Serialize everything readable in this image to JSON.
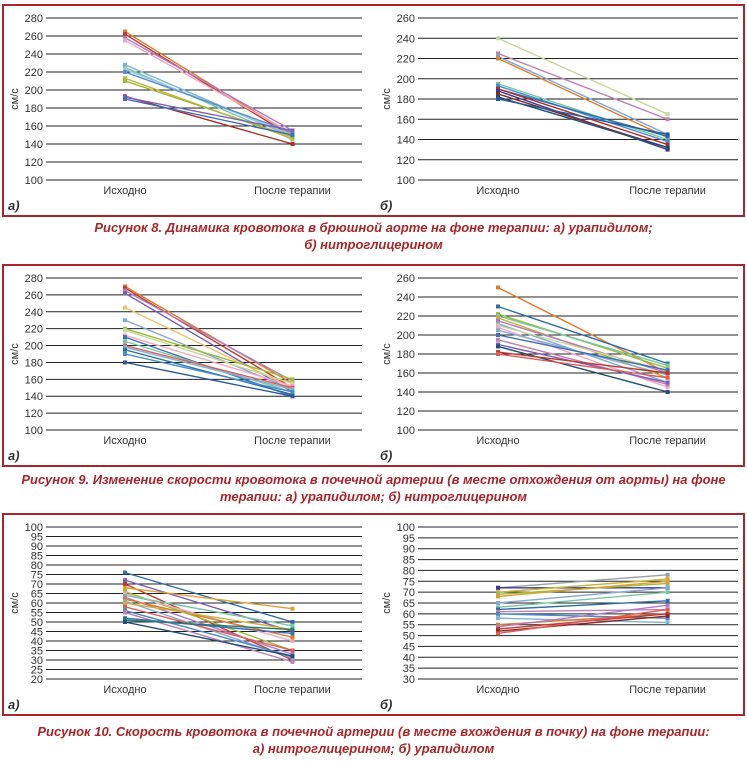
{
  "figures": [
    {
      "caption": [
        "Рисунок 8. Динамика кровотока в брюшной аорте на фоне терапии: а) урапидилом;",
        "б) нитроглицерином"
      ],
      "panels": [
        {
          "label": "а)",
          "chart_data": {
            "type": "line",
            "ylabel": "см/с",
            "ylim": [
              100,
              280
            ],
            "yticks": [
              100,
              120,
              140,
              160,
              180,
              200,
              220,
              240,
              260,
              280
            ],
            "categories": [
              "Исходно",
              "После терапии"
            ],
            "grid": true,
            "series": [
              {
                "values": [
                  265,
                  150
                ],
                "color": "#e07b2a"
              },
              {
                "values": [
                  262,
                  148
                ],
                "color": "#c0392b"
              },
              {
                "values": [
                  258,
                  155
                ],
                "color": "#b07cc6"
              },
              {
                "values": [
                  255,
                  152
                ],
                "color": "#f2a7c3"
              },
              {
                "values": [
                  228,
                  148
                ],
                "color": "#7fb3d5"
              },
              {
                "values": [
                  225,
                  145
                ],
                "color": "#76c7a3"
              },
              {
                "values": [
                  223,
                  150
                ],
                "color": "#9cc8e8"
              },
              {
                "values": [
                  220,
                  153
                ],
                "color": "#5b8fd1"
              },
              {
                "values": [
                  213,
                  146
                ],
                "color": "#c9b23b"
              },
              {
                "values": [
                  210,
                  148
                ],
                "color": "#9dbb3a"
              },
              {
                "values": [
                  193,
                  140
                ],
                "color": "#b02a2a"
              },
              {
                "values": [
                  192,
                  155
                ],
                "color": "#7b5fb8"
              },
              {
                "values": [
                  190,
                  150
                ],
                "color": "#3b6fb6"
              }
            ]
          }
        },
        {
          "label": "б)",
          "chart_data": {
            "type": "line",
            "ylabel": "см/с",
            "ylim": [
              100,
              260
            ],
            "yticks": [
              100,
              120,
              140,
              160,
              180,
              200,
              220,
              240,
              260
            ],
            "categories": [
              "Исходно",
              "После терапии"
            ],
            "grid": true,
            "series": [
              {
                "values": [
                  240,
                  165
                ],
                "color": "#c6d89a"
              },
              {
                "values": [
                  225,
                  160
                ],
                "color": "#c07fb5"
              },
              {
                "values": [
                  222,
                  145
                ],
                "color": "#7fa8d6"
              },
              {
                "values": [
                  220,
                  142
                ],
                "color": "#e07b2a"
              },
              {
                "values": [
                  195,
                  140
                ],
                "color": "#76c7a3"
              },
              {
                "values": [
                  193,
                  138
                ],
                "color": "#4a8bc9"
              },
              {
                "values": [
                  190,
                  143
                ],
                "color": "#2e6fa8"
              },
              {
                "values": [
                  190,
                  135
                ],
                "color": "#b02a2a"
              },
              {
                "values": [
                  188,
                  130
                ],
                "color": "#3a3a8c"
              },
              {
                "values": [
                  185,
                  132
                ],
                "color": "#8a2a2a"
              },
              {
                "values": [
                  182,
                  132
                ],
                "color": "#1f4f7a"
              },
              {
                "values": [
                  180,
                  145
                ],
                "color": "#2a5a9a"
              }
            ]
          }
        }
      ]
    },
    {
      "caption": [
        "Рисунок 9. Изменение скорости кровотока в почечной артерии (в месте отхождения от аорты) на фоне",
        "терапии: а) урапидилом; б) нитроглицерином"
      ],
      "panels": [
        {
          "label": "а)",
          "chart_data": {
            "type": "line",
            "ylabel": "см/с",
            "ylim": [
              100,
              280
            ],
            "yticks": [
              100,
              120,
              140,
              160,
              180,
              200,
              220,
              240,
              260,
              280
            ],
            "categories": [
              "Исходно",
              "После терапии"
            ],
            "grid": true,
            "series": [
              {
                "values": [
                  270,
                  155
                ],
                "color": "#e07b2a"
              },
              {
                "values": [
                  268,
                  150
                ],
                "color": "#c0392b"
              },
              {
                "values": [
                  265,
                  158
                ],
                "color": "#b07cc6"
              },
              {
                "values": [
                  262,
                  145
                ],
                "color": "#7b5fb8"
              },
              {
                "values": [
                  245,
                  150
                ],
                "color": "#f0c26b"
              },
              {
                "values": [
                  230,
                  148
                ],
                "color": "#8aa8d6"
              },
              {
                "values": [
                  220,
                  160
                ],
                "color": "#9dbb3a"
              },
              {
                "values": [
                  218,
                  155
                ],
                "color": "#c6d89a"
              },
              {
                "values": [
                  212,
                  152
                ],
                "color": "#f2a7c3"
              },
              {
                "values": [
                  210,
                  140
                ],
                "color": "#3b6fb6"
              },
              {
                "values": [
                  205,
                  145
                ],
                "color": "#76c7a3"
              },
              {
                "values": [
                  200,
                  150
                ],
                "color": "#e05a5a"
              },
              {
                "values": [
                  198,
                  148
                ],
                "color": "#7fb3d5"
              },
              {
                "values": [
                  195,
                  142
                ],
                "color": "#2e6fa8"
              },
              {
                "values": [
                  190,
                  145
                ],
                "color": "#4a8bc9"
              },
              {
                "values": [
                  180,
                  140
                ],
                "color": "#2a5a9a"
              }
            ]
          }
        },
        {
          "label": "б)",
          "chart_data": {
            "type": "line",
            "ylabel": "см/с",
            "ylim": [
              100,
              260
            ],
            "yticks": [
              100,
              120,
              140,
              160,
              180,
              200,
              220,
              240,
              260
            ],
            "categories": [
              "Исходно",
              "После терапии"
            ],
            "grid": true,
            "series": [
              {
                "values": [
                  250,
                  160
                ],
                "color": "#e07b2a"
              },
              {
                "values": [
                  230,
                  170
                ],
                "color": "#2e6fa8"
              },
              {
                "values": [
                  222,
                  165
                ],
                "color": "#9dbb3a"
              },
              {
                "values": [
                  220,
                  168
                ],
                "color": "#76c7a3"
              },
              {
                "values": [
                  218,
                  155
                ],
                "color": "#c9b23b"
              },
              {
                "values": [
                  215,
                  160
                ],
                "color": "#b07cc6"
              },
              {
                "values": [
                  212,
                  150
                ],
                "color": "#7fa8d6"
              },
              {
                "values": [
                  210,
                  162
                ],
                "color": "#c6d89a"
              },
              {
                "values": [
                  208,
                  145
                ],
                "color": "#f2a7c3"
              },
              {
                "values": [
                  205,
                  158
                ],
                "color": "#8aa8d6"
              },
              {
                "values": [
                  200,
                  163
                ],
                "color": "#3b6fb6"
              },
              {
                "values": [
                  195,
                  148
                ],
                "color": "#c07fb5"
              },
              {
                "values": [
                  190,
                  150
                ],
                "color": "#7b5fb8"
              },
              {
                "values": [
                  188,
                  140
                ],
                "color": "#1f4f7a"
              },
              {
                "values": [
                  182,
                  160
                ],
                "color": "#c0392b"
              },
              {
                "values": [
                  180,
                  155
                ],
                "color": "#e05a5a"
              }
            ]
          }
        }
      ]
    },
    {
      "caption": [
        "Рисунок 10. Скорость кровотока в почечной артерии (в месте вхождения в почку) на фоне терапии:",
        "а) нитроглицерином; б) урапидилом"
      ],
      "panels": [
        {
          "label": "а)",
          "chart_data": {
            "type": "line",
            "ylabel": "см/с",
            "ylim": [
              20,
              100
            ],
            "yticks": [
              20,
              25,
              30,
              35,
              40,
              45,
              50,
              55,
              60,
              65,
              70,
              75,
              80,
              85,
              90,
              95,
              100
            ],
            "categories": [
              "Исходно",
              "После терапии"
            ],
            "grid": true,
            "series": [
              {
                "values": [
                  76,
                  50
                ],
                "color": "#2e6fa8"
              },
              {
                "values": [
                  72,
                  45
                ],
                "color": "#7b5fb8"
              },
              {
                "values": [
                  70,
                  30
                ],
                "color": "#c0392b"
              },
              {
                "values": [
                  68,
                  57
                ],
                "color": "#e0a030"
              },
              {
                "values": [
                  66,
                  35
                ],
                "color": "#9dbb3a"
              },
              {
                "values": [
                  65,
                  40
                ],
                "color": "#f2a7c3"
              },
              {
                "values": [
                  64,
                  48
                ],
                "color": "#76c7a3"
              },
              {
                "values": [
                  63,
                  33
                ],
                "color": "#b07cc6"
              },
              {
                "values": [
                  62,
                  42
                ],
                "color": "#e07b2a"
              },
              {
                "values": [
                  61,
                  31
                ],
                "color": "#8aa8d6"
              },
              {
                "values": [
                  60,
                  46
                ],
                "color": "#c9b23b"
              },
              {
                "values": [
                  58,
                  35
                ],
                "color": "#e05a5a"
              },
              {
                "values": [
                  56,
                  32
                ],
                "color": "#4a8bc9"
              },
              {
                "values": [
                  55,
                  29
                ],
                "color": "#c07fb5"
              },
              {
                "values": [
                  52,
                  44
                ],
                "color": "#3b6fb6"
              },
              {
                "values": [
                  51,
                  46
                ],
                "color": "#2a7a6a"
              },
              {
                "values": [
                  50,
                  32
                ],
                "color": "#1f4f7a"
              }
            ]
          }
        },
        {
          "label": "б)",
          "chart_data": {
            "type": "line",
            "ylabel": "см/с",
            "ylim": [
              30,
              100
            ],
            "yticks": [
              30,
              35,
              40,
              45,
              50,
              55,
              60,
              65,
              70,
              75,
              80,
              85,
              90,
              95,
              100
            ],
            "categories": [
              "Исходно",
              "После терапии"
            ],
            "grid": true,
            "series": [
              {
                "values": [
                  72,
                  78
                ],
                "color": "#9aa0a6"
              },
              {
                "values": [
                  72,
                  72
                ],
                "color": "#3a3a8c"
              },
              {
                "values": [
                  70,
                  76
                ],
                "color": "#c9b23b"
              },
              {
                "values": [
                  69,
                  74
                ],
                "color": "#9dbb3a"
              },
              {
                "values": [
                  68,
                  75
                ],
                "color": "#e0a030"
              },
              {
                "values": [
                  65,
                  72
                ],
                "color": "#8aa8d6"
              },
              {
                "values": [
                  63,
                  70
                ],
                "color": "#76c7a3"
              },
              {
                "values": [
                  62,
                  66
                ],
                "color": "#2e6fa8"
              },
              {
                "values": [
                  61,
                  62
                ],
                "color": "#c07fb5"
              },
              {
                "values": [
                  60,
                  58
                ],
                "color": "#4a8bc9"
              },
              {
                "values": [
                  58,
                  56
                ],
                "color": "#7fb3d5"
              },
              {
                "values": [
                  55,
                  60
                ],
                "color": "#e07b2a"
              },
              {
                "values": [
                  54,
                  64
                ],
                "color": "#b07cc6"
              },
              {
                "values": [
                  53,
                  60
                ],
                "color": "#c0392b"
              },
              {
                "values": [
                  52,
                  59
                ],
                "color": "#8a2a2a"
              },
              {
                "values": [
                  51,
                  62
                ],
                "color": "#e05a5a"
              }
            ]
          }
        }
      ]
    }
  ]
}
